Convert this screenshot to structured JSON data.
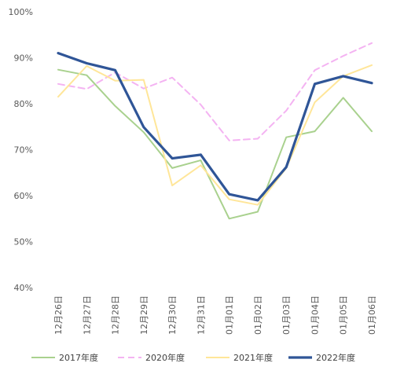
{
  "chart_data": {
    "type": "line",
    "title": "",
    "xlabel": "",
    "ylabel": "",
    "ylim": [
      0.4,
      1.0
    ],
    "yticks": [
      "40%",
      "50%",
      "60%",
      "70%",
      "80%",
      "90%",
      "100%"
    ],
    "grid": false,
    "legend_position": "bottom",
    "categories": [
      "12月26日",
      "12月27日",
      "12月28日",
      "12月29日",
      "12月30日",
      "12月31日",
      "01月01日",
      "01月02日",
      "01月03日",
      "01月04日",
      "01月05日",
      "01月06日"
    ],
    "series": [
      {
        "name": "2017年度",
        "color": "#a9d18e",
        "style": "solid",
        "values": [
          0.874,
          0.862,
          0.795,
          0.738,
          0.66,
          0.677,
          0.55,
          0.565,
          0.727,
          0.74,
          0.813,
          0.74
        ]
      },
      {
        "name": "2020年度",
        "color": "#f4b3f2",
        "style": "dashed",
        "values": [
          0.843,
          0.832,
          0.868,
          0.833,
          0.857,
          0.798,
          0.72,
          0.724,
          0.785,
          0.873,
          0.904,
          0.932
        ]
      },
      {
        "name": "2021年度",
        "color": "#ffe699",
        "style": "solid",
        "values": [
          0.815,
          0.882,
          0.85,
          0.852,
          0.622,
          0.666,
          0.592,
          0.58,
          0.66,
          0.803,
          0.86,
          0.884
        ]
      },
      {
        "name": "2022年度",
        "color": "#2f5597",
        "style": "bold",
        "values": [
          0.91,
          0.888,
          0.873,
          0.749,
          0.681,
          0.689,
          0.603,
          0.59,
          0.662,
          0.843,
          0.86,
          0.845
        ]
      }
    ]
  }
}
